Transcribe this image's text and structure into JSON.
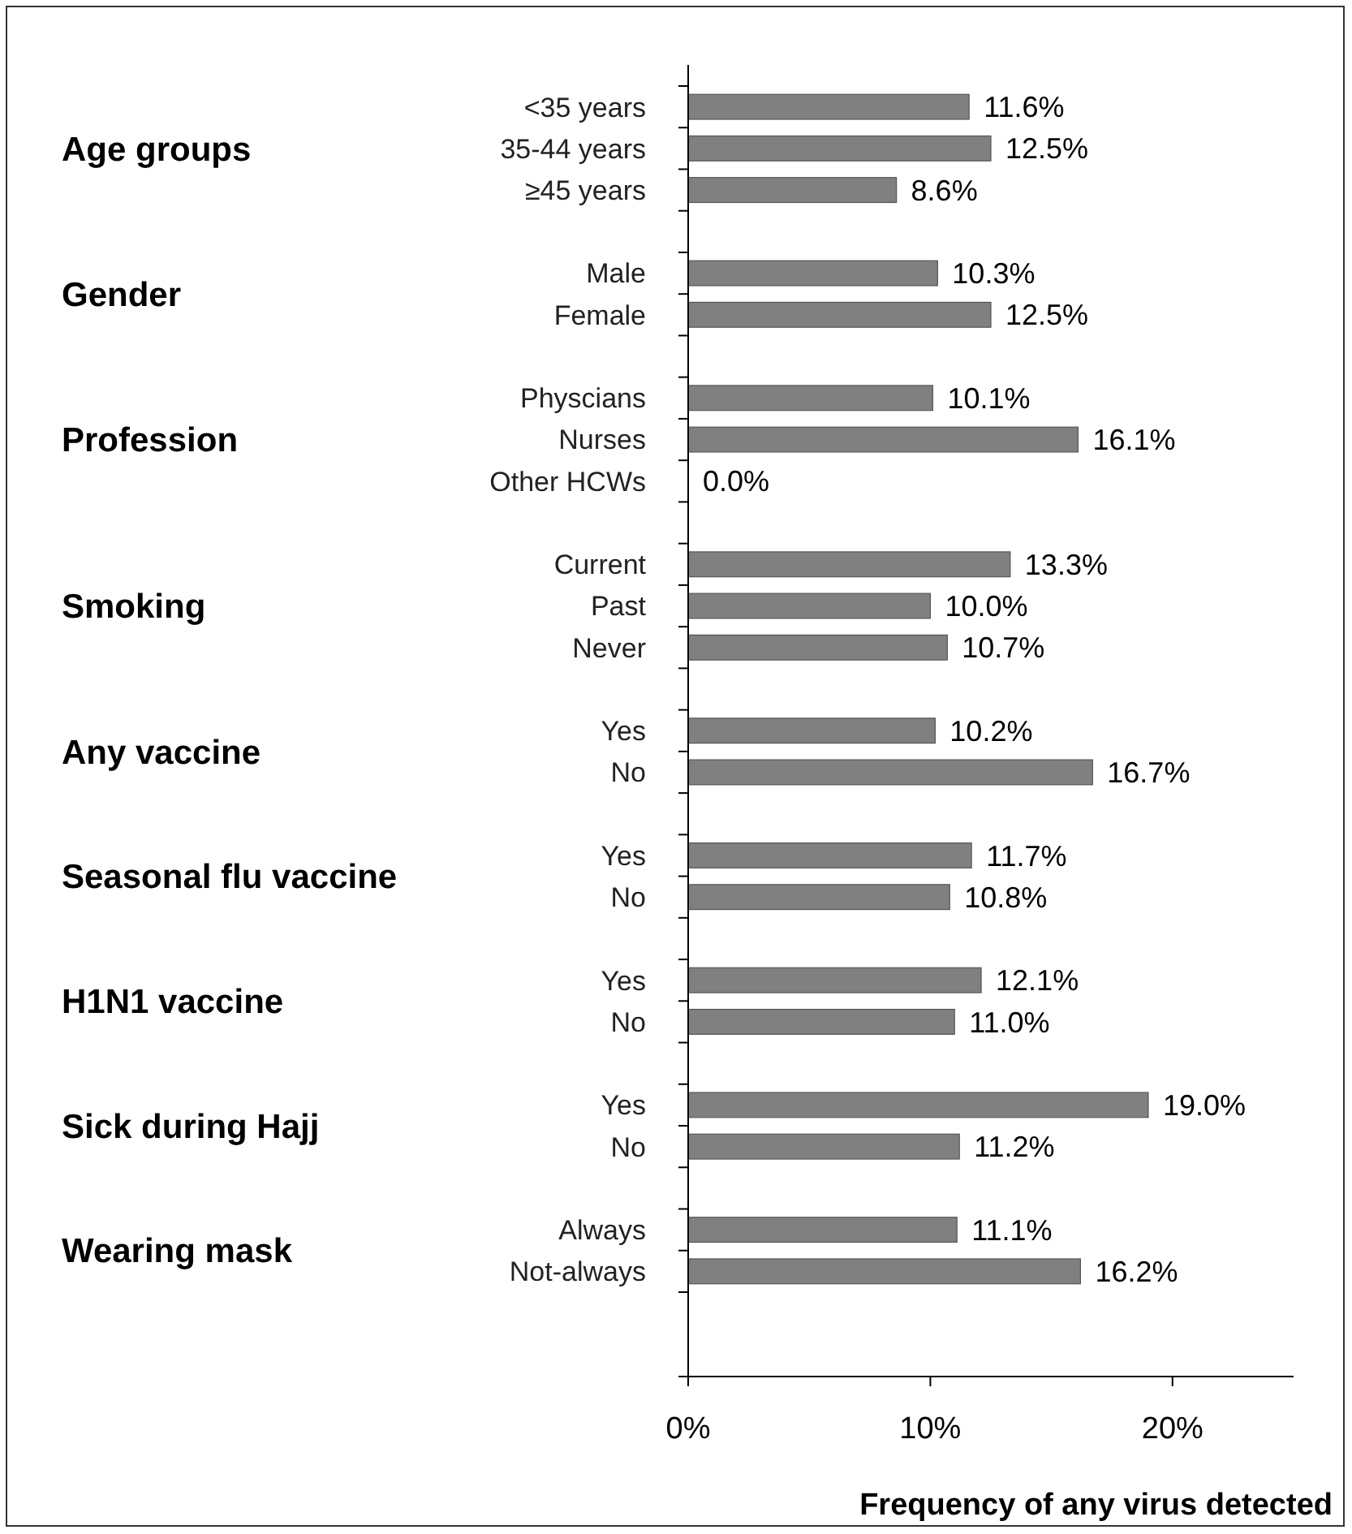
{
  "chart_data": {
    "type": "bar",
    "orientation": "horizontal",
    "xlabel": "Frequency of any virus detected",
    "categories": [
      "<35 years",
      "35-44 years",
      "≥45 years",
      null,
      "Male",
      "Female",
      null,
      "Physcians",
      "Nurses",
      "Other HCWs",
      null,
      "Current",
      "Past",
      "Never",
      null,
      "Yes",
      "No",
      null,
      "Yes",
      "No",
      null,
      "Yes",
      "No",
      null,
      "Yes",
      "No",
      null,
      "Always",
      "Not-always"
    ],
    "values": [
      11.6,
      12.5,
      8.6,
      null,
      10.3,
      12.5,
      null,
      10.1,
      16.1,
      0.0,
      null,
      13.3,
      10.0,
      10.7,
      null,
      10.2,
      16.7,
      null,
      11.7,
      10.8,
      null,
      12.1,
      11.0,
      null,
      19.0,
      11.2,
      null,
      11.1,
      16.2
    ],
    "value_labels": [
      "11.6%",
      "12.5%",
      "8.6%",
      null,
      "10.3%",
      "12.5%",
      null,
      "10.1%",
      "16.1%",
      "0.0%",
      null,
      "13.3%",
      "10.0%",
      "10.7%",
      null,
      "10.2%",
      "16.7%",
      null,
      "11.7%",
      "10.8%",
      null,
      "12.1%",
      "11.0%",
      null,
      "19.0%",
      "11.2%",
      null,
      "11.1%",
      "16.2%"
    ],
    "color": "#808080",
    "xlim": [
      0,
      25
    ],
    "xticks": [
      {
        "value": 0,
        "label": "0%"
      },
      {
        "value": 10,
        "label": "10%"
      },
      {
        "value": 20,
        "label": "20%"
      }
    ],
    "annotations": [
      "Age groups",
      "Gender",
      "Profession",
      "Smoking",
      "Any vaccine",
      "Seasonal flu vaccine",
      "H1N1 vaccine",
      "Sick during Hajj",
      "Wearing mask"
    ]
  }
}
